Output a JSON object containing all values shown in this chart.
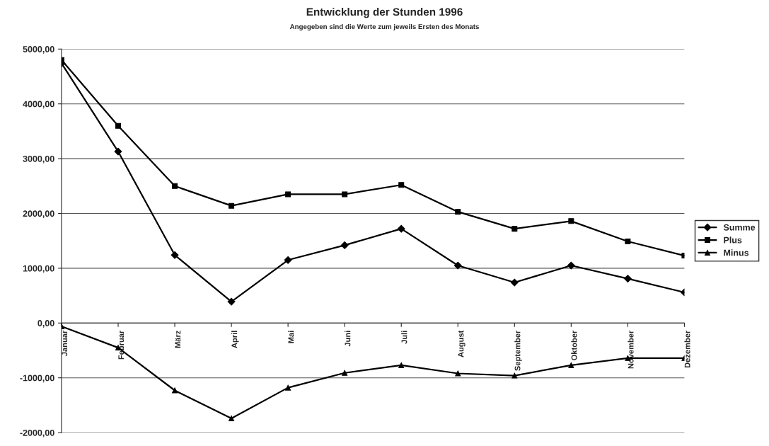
{
  "chart_data": {
    "type": "line",
    "title": "Entwicklung der Stunden 1996",
    "subtitle": "Angegeben sind die Werte zum jeweils Ersten des Monats",
    "categories": [
      "Januar",
      "Februar",
      "März",
      "April",
      "Mai",
      "Juni",
      "Juli",
      "August",
      "September",
      "Oktober",
      "November",
      "Dezember"
    ],
    "series": [
      {
        "name": "Summe",
        "color": "#000000",
        "marker": "diamond",
        "values": [
          4740,
          3130,
          1240,
          390,
          1150,
          1420,
          1720,
          1050,
          740,
          1050,
          810,
          560
        ]
      },
      {
        "name": "Plus",
        "color": "#000000",
        "marker": "square",
        "values": [
          4800,
          3600,
          2500,
          2140,
          2350,
          2350,
          2520,
          2030,
          1720,
          1860,
          1490,
          1230
        ]
      },
      {
        "name": "Minus",
        "color": "#000000",
        "marker": "triangle",
        "values": [
          -60,
          -450,
          -1230,
          -1740,
          -1180,
          -910,
          -770,
          -920,
          -960,
          -770,
          -640,
          -640
        ]
      }
    ],
    "ylim": [
      -2000,
      5000
    ],
    "yticks": [
      {
        "value": -2000,
        "label": "-2000,00"
      },
      {
        "value": -1000,
        "label": "-1000,00"
      },
      {
        "value": 0,
        "label": "0,00"
      },
      {
        "value": 1000,
        "label": "1000,00"
      },
      {
        "value": 2000,
        "label": "2000,00"
      },
      {
        "value": 3000,
        "label": "3000,00"
      },
      {
        "value": 4000,
        "label": "4000,00"
      },
      {
        "value": 5000,
        "label": "5000,00"
      }
    ],
    "grid": "y",
    "legend": "right",
    "line_style": "solid"
  }
}
